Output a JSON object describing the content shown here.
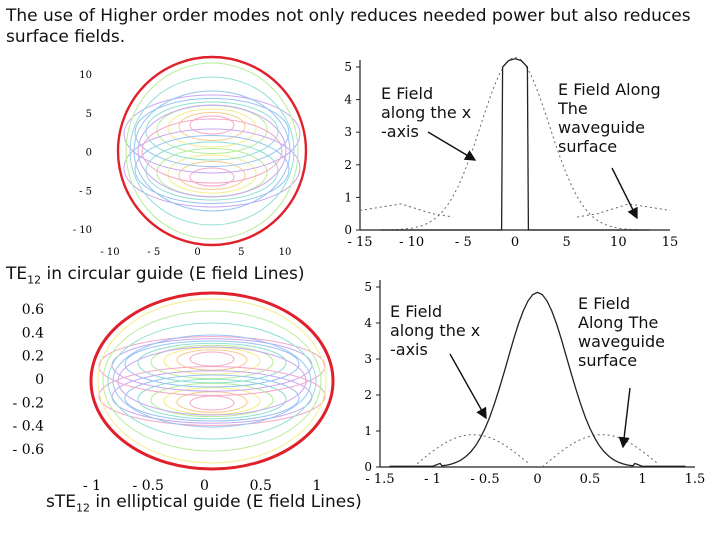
{
  "heading": "The use of Higher order modes not only reduces needed power but also reduces surface fields.",
  "top_left": {
    "caption_prefix": "TE",
    "caption_sub": "12",
    "caption_suffix": " in circular guide  (E field Lines)",
    "x_ticks": [
      "- 10",
      "- 5",
      "0",
      "5",
      "10"
    ],
    "y_ticks": [
      "10",
      "5",
      "0",
      "- 5",
      "- 10"
    ]
  },
  "bottom_left": {
    "caption_prefix": "sTE",
    "caption_sub": "12",
    "caption_suffix": " in elliptical guide  (E field Lines)",
    "x_ticks": [
      "- 1",
      "- 0.5",
      "0",
      "0.5",
      "1"
    ],
    "y_ticks": [
      "0.6",
      "0.4",
      "0.2",
      "0",
      "- 0.2",
      "- 0.4",
      "- 0.6"
    ]
  },
  "top_right": {
    "annot_axis": "E Field\nalong the x\n-axis",
    "annot_surface": "E Field Along\nThe\nwaveguide\nsurface",
    "x_ticks": [
      "- 15",
      "- 10",
      "- 5",
      "0",
      "5",
      "10",
      "15"
    ],
    "y_ticks": [
      "5",
      "4",
      "3",
      "2",
      "1",
      "0"
    ]
  },
  "bottom_right": {
    "annot_axis": "E Field\nalong the x\n-axis",
    "annot_surface": "E Field\nAlong The\nwaveguide\nsurface",
    "x_ticks": [
      "- 1.5",
      "- 1",
      "- 0.5",
      "0",
      "0.5",
      "1",
      "1.5"
    ],
    "y_ticks": [
      "5",
      "4",
      "3",
      "2",
      "1",
      "0"
    ]
  },
  "colors": {
    "boundary": "#e0202a",
    "plot_line": "#222222",
    "contours": [
      "#f4a8c8",
      "#f7c98a",
      "#f3ee8a",
      "#b8ec9a",
      "#8fe0d4",
      "#98c4f3",
      "#c7a8f0"
    ]
  }
}
